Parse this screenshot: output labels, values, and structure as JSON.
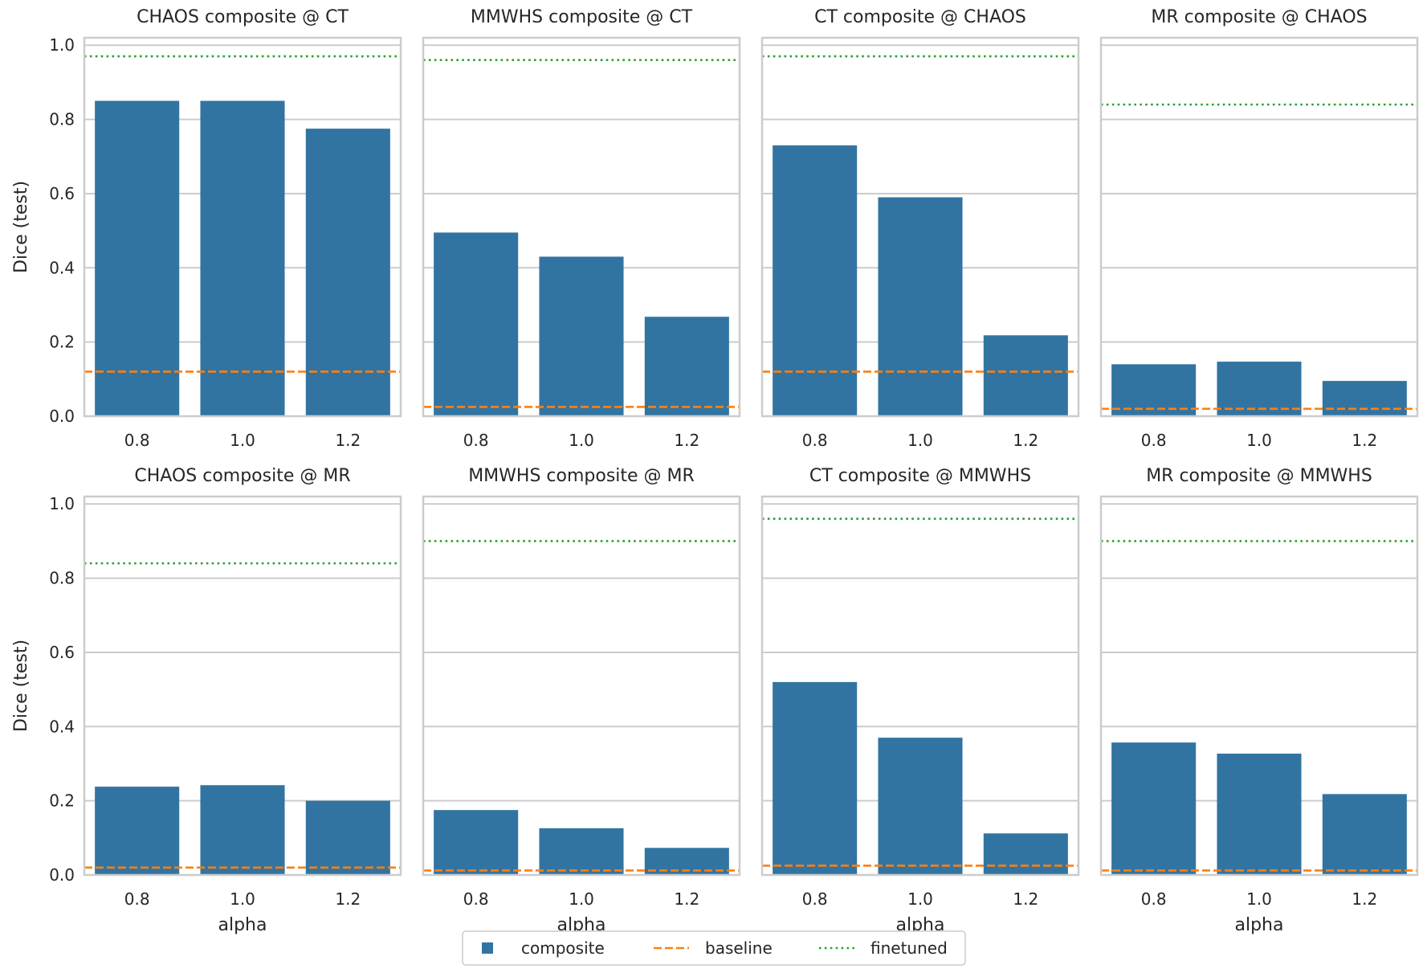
{
  "figure": {
    "ylabel": "Dice (test)",
    "xlabel": "alpha"
  },
  "legend": {
    "items": [
      {
        "label": "composite",
        "style": "box",
        "color": "#3274a1"
      },
      {
        "label": "baseline",
        "style": "dashed",
        "color": "#ff7f0e"
      },
      {
        "label": "finetuned",
        "style": "dotted",
        "color": "#2ca02c"
      }
    ],
    "placement": "bottom-center"
  },
  "chart_data": [
    {
      "type": "bar",
      "title": "CHAOS composite @ CT",
      "categories": [
        "0.8",
        "1.0",
        "1.2"
      ],
      "values": [
        0.85,
        0.85,
        0.775
      ],
      "baseline": 0.12,
      "finetuned": 0.97,
      "ylim": [
        0,
        1.02
      ],
      "yticks": [
        "0.0",
        "0.2",
        "0.4",
        "0.6",
        "0.8",
        "1.0"
      ],
      "grid": true
    },
    {
      "type": "bar",
      "title": "MMWHS composite @ CT",
      "categories": [
        "0.8",
        "1.0",
        "1.2"
      ],
      "values": [
        0.495,
        0.43,
        0.268
      ],
      "baseline": 0.025,
      "finetuned": 0.96,
      "ylim": [
        0,
        1.02
      ],
      "yticks": [
        "0.0",
        "0.2",
        "0.4",
        "0.6",
        "0.8",
        "1.0"
      ],
      "grid": true
    },
    {
      "type": "bar",
      "title": "CT composite @ CHAOS",
      "categories": [
        "0.8",
        "1.0",
        "1.2"
      ],
      "values": [
        0.73,
        0.59,
        0.218
      ],
      "baseline": 0.12,
      "finetuned": 0.97,
      "ylim": [
        0,
        1.02
      ],
      "yticks": [
        "0.0",
        "0.2",
        "0.4",
        "0.6",
        "0.8",
        "1.0"
      ],
      "grid": true
    },
    {
      "type": "bar",
      "title": "MR composite @ CHAOS",
      "categories": [
        "0.8",
        "1.0",
        "1.2"
      ],
      "values": [
        0.14,
        0.147,
        0.095
      ],
      "baseline": 0.02,
      "finetuned": 0.84,
      "ylim": [
        0,
        1.02
      ],
      "yticks": [
        "0.0",
        "0.2",
        "0.4",
        "0.6",
        "0.8",
        "1.0"
      ],
      "grid": true
    },
    {
      "type": "bar",
      "title": "CHAOS composite @ MR",
      "categories": [
        "0.8",
        "1.0",
        "1.2"
      ],
      "values": [
        0.238,
        0.242,
        0.2
      ],
      "baseline": 0.02,
      "finetuned": 0.84,
      "ylim": [
        0,
        1.02
      ],
      "yticks": [
        "0.0",
        "0.2",
        "0.4",
        "0.6",
        "0.8",
        "1.0"
      ],
      "grid": true
    },
    {
      "type": "bar",
      "title": "MMWHS composite @ MR",
      "categories": [
        "0.8",
        "1.0",
        "1.2"
      ],
      "values": [
        0.175,
        0.126,
        0.073
      ],
      "baseline": 0.012,
      "finetuned": 0.9,
      "ylim": [
        0,
        1.02
      ],
      "yticks": [
        "0.0",
        "0.2",
        "0.4",
        "0.6",
        "0.8",
        "1.0"
      ],
      "grid": true
    },
    {
      "type": "bar",
      "title": "CT composite @ MMWHS",
      "categories": [
        "0.8",
        "1.0",
        "1.2"
      ],
      "values": [
        0.52,
        0.37,
        0.112
      ],
      "baseline": 0.025,
      "finetuned": 0.96,
      "ylim": [
        0,
        1.02
      ],
      "yticks": [
        "0.0",
        "0.2",
        "0.4",
        "0.6",
        "0.8",
        "1.0"
      ],
      "grid": true
    },
    {
      "type": "bar",
      "title": "MR composite @ MMWHS",
      "categories": [
        "0.8",
        "1.0",
        "1.2"
      ],
      "values": [
        0.357,
        0.327,
        0.218
      ],
      "baseline": 0.012,
      "finetuned": 0.9,
      "ylim": [
        0,
        1.02
      ],
      "yticks": [
        "0.0",
        "0.2",
        "0.4",
        "0.6",
        "0.8",
        "1.0"
      ],
      "grid": true
    }
  ]
}
